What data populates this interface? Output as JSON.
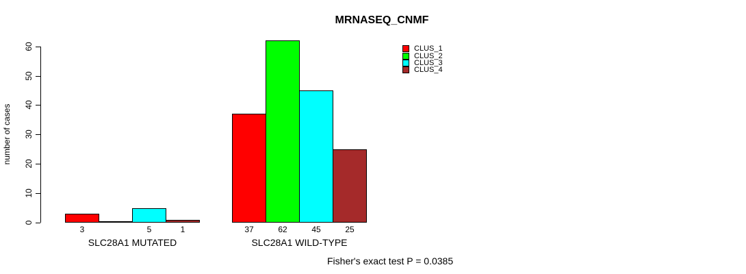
{
  "header": {
    "title": "MRNASEQ_CNMF"
  },
  "y_axis": {
    "label": "number of cases"
  },
  "legend": {
    "items": [
      {
        "label": "CLUS_1",
        "color": "#FF0000"
      },
      {
        "label": "CLUS_2",
        "color": "#00FF00"
      },
      {
        "label": "CLUS_3",
        "color": "#00FFFF"
      },
      {
        "label": "CLUS_4",
        "color": "#A52A2A"
      }
    ]
  },
  "footer": {
    "text": "Fisher's exact test P = 0.0385"
  },
  "chart_data": {
    "type": "bar",
    "title": "MRNASEQ_CNMF",
    "xlabel": "",
    "ylabel": "number of cases",
    "ylim": [
      0,
      62
    ],
    "yticks": [
      0,
      10,
      20,
      30,
      40,
      50,
      60
    ],
    "grid": false,
    "legend_position": "top-right-inside",
    "categories": [
      "SLC28A1 MUTATED",
      "SLC28A1 WILD-TYPE"
    ],
    "series": [
      {
        "name": "CLUS_1",
        "color": "#FF0000",
        "values": [
          3,
          37
        ]
      },
      {
        "name": "CLUS_2",
        "color": "#00FF00",
        "values": [
          0,
          62
        ]
      },
      {
        "name": "CLUS_3",
        "color": "#00FFFF",
        "values": [
          5,
          45
        ]
      },
      {
        "name": "CLUS_4",
        "color": "#A52A2A",
        "values": [
          1,
          25
        ]
      }
    ],
    "bar_value_labels": [
      [
        "3",
        "",
        "5",
        "1"
      ],
      [
        "37",
        "62",
        "45",
        "25"
      ]
    ],
    "annotation": "Fisher's exact test P = 0.0385"
  }
}
